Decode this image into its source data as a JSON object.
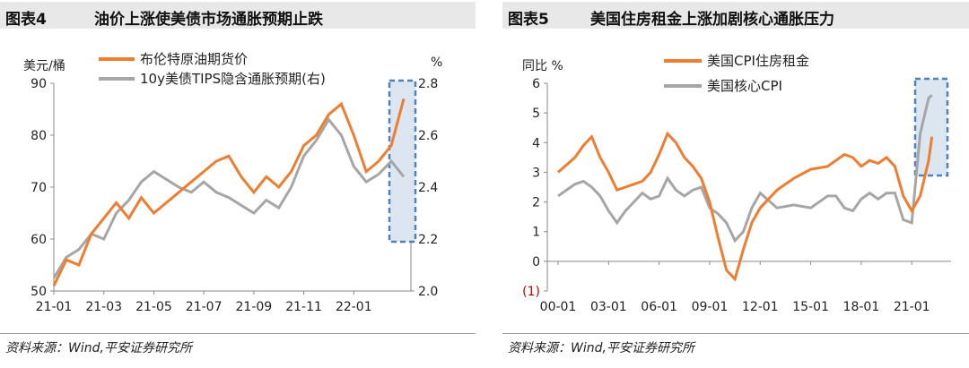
{
  "charts": [
    {
      "number": "图表4",
      "title": "油价上涨使美债市场通胀预期止跌",
      "source": "资料来源：Wind,平安证券研究所",
      "colors": {
        "oil": "#ed7d31",
        "tips": "#a6a6a6",
        "box": "#4f81bd",
        "boxFill": "#dce6f1"
      },
      "ylabel_left": "美元/桶",
      "ylabel_right": "%"
    },
    {
      "number": "图表5",
      "title": "美国住房租金上涨加剧核心通胀压力",
      "source": "资料来源：Wind,平安证券研究所",
      "colors": {
        "rent": "#ed7d31",
        "core": "#a6a6a6",
        "box": "#4f81bd",
        "boxFill": "#dce6f1",
        "neg": "#c00000"
      },
      "ylabel": "同比 %"
    }
  ],
  "chart_data": [
    {
      "type": "line",
      "x_ticks": [
        "21-01",
        "21-03",
        "21-05",
        "21-07",
        "21-09",
        "21-11",
        "22-01"
      ],
      "y_left_ticks": [
        "50",
        "60",
        "70",
        "80",
        "90"
      ],
      "y_right_ticks": [
        "2.0",
        "2.2",
        "2.4",
        "2.6",
        "2.8"
      ],
      "ylim_left": [
        50,
        90
      ],
      "ylim_right": [
        2.0,
        2.8
      ],
      "legend_position": "top-left",
      "series": [
        {
          "name": "布伦特原油期货价",
          "axis": "left",
          "x": [
            0,
            0.5,
            1,
            1.5,
            2,
            2.5,
            3,
            3.5,
            4,
            4.5,
            5,
            5.5,
            6,
            6.5,
            7,
            7.5,
            8,
            8.5,
            9,
            9.5,
            10,
            10.5,
            11,
            11.5,
            12,
            12.5,
            13,
            13.5,
            14
          ],
          "values": [
            51,
            56,
            55,
            61,
            64,
            67,
            64,
            68,
            65,
            67,
            69,
            71,
            73,
            75,
            76,
            72,
            69,
            72,
            70,
            73,
            78,
            80,
            84,
            86,
            80,
            73,
            75,
            78,
            87
          ]
        },
        {
          "name": "10y美债TIPS隐含通胀预期(右)",
          "axis": "right",
          "x": [
            0,
            0.5,
            1,
            1.5,
            2,
            2.5,
            3,
            3.5,
            4,
            4.5,
            5,
            5.5,
            6,
            6.5,
            7,
            7.5,
            8,
            8.5,
            9,
            9.5,
            10,
            10.5,
            11,
            11.5,
            12,
            12.5,
            13,
            13.5,
            14
          ],
          "values": [
            2.05,
            2.13,
            2.16,
            2.22,
            2.2,
            2.3,
            2.35,
            2.42,
            2.46,
            2.43,
            2.4,
            2.38,
            2.42,
            2.38,
            2.36,
            2.33,
            2.3,
            2.35,
            2.32,
            2.4,
            2.52,
            2.58,
            2.66,
            2.6,
            2.48,
            2.42,
            2.45,
            2.5,
            2.44
          ]
        }
      ]
    },
    {
      "type": "line",
      "x_ticks": [
        "00-01",
        "03-01",
        "06-01",
        "09-01",
        "12-01",
        "15-01",
        "18-01",
        "21-01"
      ],
      "y_ticks": [
        "6",
        "5",
        "4",
        "3",
        "2",
        "1",
        "0",
        "(1)"
      ],
      "ylim": [
        -1,
        6
      ],
      "legend_position": "top-left",
      "series": [
        {
          "name": "美国CPI住房租金",
          "x": [
            2000,
            2001,
            2001.5,
            2002,
            2002.5,
            2003,
            2003.5,
            2004,
            2004.5,
            2005,
            2005.5,
            2006,
            2006.5,
            2007,
            2007.5,
            2008,
            2008.5,
            2009,
            2009.5,
            2010,
            2010.5,
            2011,
            2011.5,
            2012,
            2013,
            2014,
            2015,
            2016,
            2016.5,
            2017,
            2017.5,
            2018,
            2018.5,
            2019,
            2019.5,
            2020,
            2020.5,
            2021,
            2021.5,
            2022,
            2022.2
          ],
          "values": [
            3.0,
            3.5,
            3.9,
            4.2,
            3.5,
            3.0,
            2.4,
            2.5,
            2.6,
            2.7,
            3.0,
            3.6,
            4.3,
            4.0,
            3.5,
            3.2,
            2.8,
            2.0,
            0.8,
            -0.3,
            -0.6,
            0.4,
            1.3,
            1.8,
            2.4,
            2.8,
            3.1,
            3.2,
            3.4,
            3.6,
            3.5,
            3.2,
            3.4,
            3.3,
            3.5,
            3.2,
            2.2,
            1.7,
            2.2,
            3.4,
            4.2
          ]
        },
        {
          "name": "美国核心CPI",
          "x": [
            2000,
            2001,
            2001.5,
            2002,
            2002.5,
            2003,
            2003.5,
            2004,
            2004.5,
            2005,
            2005.5,
            2006,
            2006.5,
            2007,
            2007.5,
            2008,
            2008.5,
            2009,
            2009.5,
            2010,
            2010.5,
            2011,
            2011.5,
            2012,
            2013,
            2014,
            2015,
            2016,
            2016.5,
            2017,
            2017.5,
            2018,
            2018.5,
            2019,
            2019.5,
            2020,
            2020.5,
            2021,
            2021.5,
            2022,
            2022.2
          ],
          "values": [
            2.2,
            2.6,
            2.7,
            2.5,
            2.2,
            1.7,
            1.3,
            1.7,
            2.0,
            2.3,
            2.1,
            2.2,
            2.8,
            2.4,
            2.2,
            2.4,
            2.5,
            1.8,
            1.6,
            1.3,
            0.7,
            1.0,
            1.8,
            2.3,
            1.8,
            1.9,
            1.8,
            2.2,
            2.2,
            1.8,
            1.7,
            2.1,
            2.3,
            2.1,
            2.3,
            2.3,
            1.4,
            1.3,
            4.3,
            5.5,
            5.6
          ]
        }
      ]
    }
  ]
}
